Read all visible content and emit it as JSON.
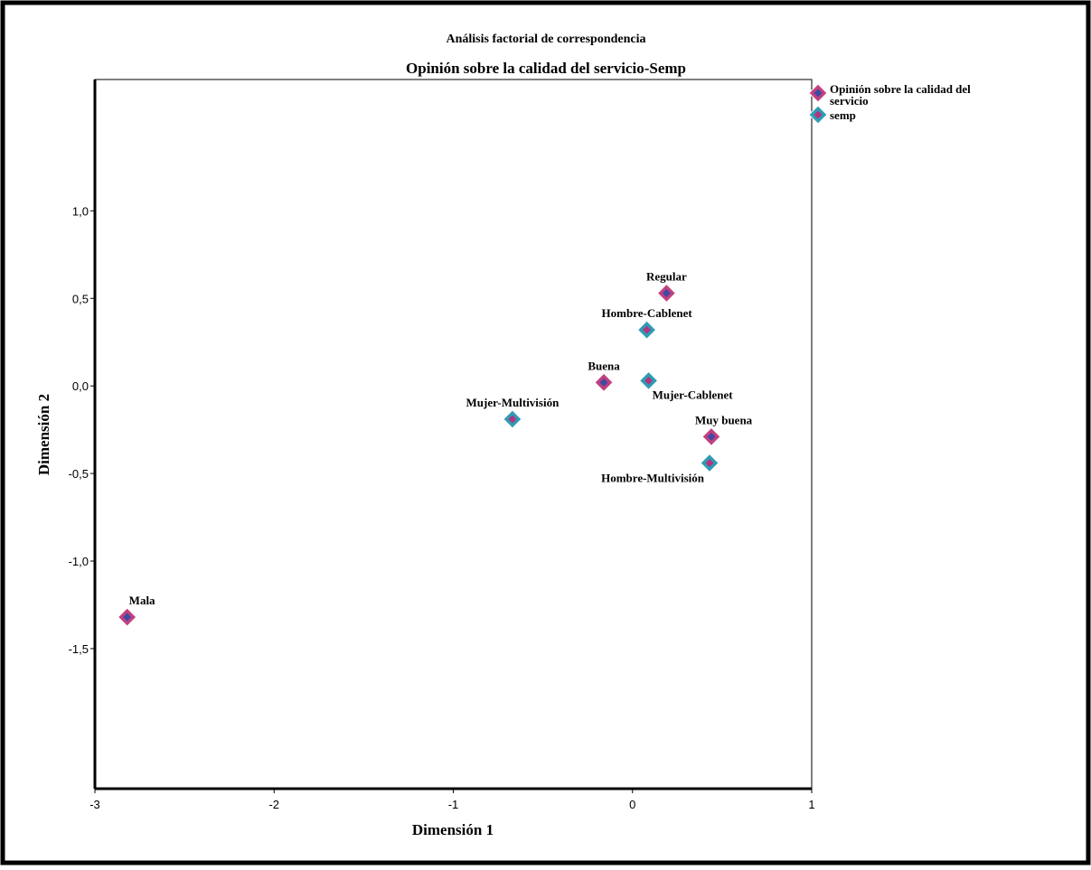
{
  "chart_data": {
    "type": "scatter",
    "supertitle": "Análisis factorial de correspondencia",
    "title": "Opinión sobre la calidad del servicio-Semp",
    "xlabel": "Dimensión 1",
    "ylabel": "Dimensión 2",
    "xlim": [
      -3,
      1
    ],
    "ylim": [
      -2.3,
      1.75
    ],
    "xticks": [
      -3,
      -2,
      -1,
      0,
      1
    ],
    "xtick_labels": [
      "-3",
      "-2",
      "-1",
      "0",
      "1"
    ],
    "yticks": [
      1.0,
      0.5,
      0.0,
      -0.5,
      -1.0,
      -1.5
    ],
    "ytick_labels": [
      "1,0",
      "0,5",
      "0,0",
      "-0,5",
      "-1,0",
      "-1,5"
    ],
    "grid": false,
    "legend_position": "outside-top-right",
    "legend": [
      {
        "label": "Opinión sobre la calidad del servicio",
        "style": "pink"
      },
      {
        "label": "semp",
        "style": "teal"
      }
    ],
    "styles": {
      "pink": {
        "outer": "#c2407e",
        "inner": "#3f4aa3"
      },
      "teal": {
        "outer": "#2e9cb5",
        "inner": "#b2357f"
      }
    },
    "series": [
      {
        "name": "Opinión sobre la calidad del servicio",
        "style": "pink",
        "points": [
          {
            "label": "Regular",
            "x": 0.19,
            "y": 0.53,
            "label_pos": "above"
          },
          {
            "label": "Buena",
            "x": -0.16,
            "y": 0.02,
            "label_pos": "above"
          },
          {
            "label": "Muy buena",
            "x": 0.44,
            "y": -0.29,
            "label_pos": "above-right"
          },
          {
            "label": "Mala",
            "x": -2.82,
            "y": -1.32,
            "label_pos": "above-right"
          }
        ]
      },
      {
        "name": "semp",
        "style": "teal",
        "points": [
          {
            "label": "Hombre-Cablenet",
            "x": 0.08,
            "y": 0.32,
            "label_pos": "above"
          },
          {
            "label": "Mujer-Cablenet",
            "x": 0.09,
            "y": 0.03,
            "label_pos": "below-right"
          },
          {
            "label": "Mujer-Multivisión",
            "x": -0.67,
            "y": -0.19,
            "label_pos": "above"
          },
          {
            "label": "Hombre-Multivisión",
            "x": 0.43,
            "y": -0.44,
            "label_pos": "below-left"
          }
        ]
      }
    ]
  }
}
